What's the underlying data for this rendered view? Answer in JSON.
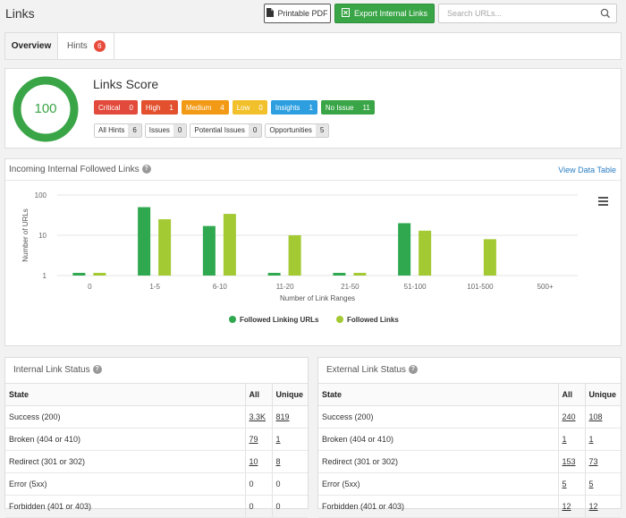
{
  "header": {
    "title": "Links",
    "pdf_label": "Printable PDF",
    "export_label": "Export Internal Links",
    "search_placeholder": "Search URLs..."
  },
  "tabs": [
    {
      "label": "Overview",
      "active": true
    },
    {
      "label": "Hints",
      "badge": "6"
    }
  ],
  "score": {
    "value": "100",
    "title": "Links Score",
    "severity": [
      {
        "label": "Critical",
        "count": "0",
        "color": "#e24a3b"
      },
      {
        "label": "High",
        "count": "1",
        "color": "#e2502e"
      },
      {
        "label": "Medium",
        "count": "4",
        "color": "#f29a16"
      },
      {
        "label": "Low",
        "count": "0",
        "color": "#f2c02b"
      },
      {
        "label": "Insights",
        "count": "1",
        "color": "#2d9fe0"
      },
      {
        "label": "No Issue",
        "count": "11",
        "color": "#3aa547"
      }
    ],
    "hint_types": [
      {
        "label": "All Hints",
        "count": "6"
      },
      {
        "label": "Issues",
        "count": "0"
      },
      {
        "label": "Potential Issues",
        "count": "0"
      },
      {
        "label": "Opportunities",
        "count": "5"
      }
    ]
  },
  "chart_panel": {
    "title": "Incoming Internal Followed Links",
    "link": "View Data Table"
  },
  "chart_data": {
    "type": "bar",
    "categories": [
      "0",
      "1-5",
      "6-10",
      "11-20",
      "21-50",
      "51-100",
      "101-500",
      "500+"
    ],
    "series": [
      {
        "name": "Followed Linking URLs",
        "values": [
          1,
          50,
          17,
          1,
          1,
          20,
          null,
          null
        ],
        "color": "#2fa84f"
      },
      {
        "name": "Followed Links",
        "values": [
          1,
          25,
          34,
          10,
          1,
          13,
          8,
          null
        ],
        "color": "#a3c933"
      }
    ],
    "xlabel": "Number of Link Ranges",
    "ylabel": "Number of URLs",
    "y_scale": "log",
    "ylim": [
      1,
      100
    ],
    "yticks": [
      "1",
      "10",
      "100"
    ],
    "legend": "bottom"
  },
  "internal_table": {
    "title": "Internal Link Status",
    "columns": [
      "State",
      "All",
      "Unique"
    ],
    "rows": [
      {
        "state": "Success (200)",
        "all": "3.3K",
        "unique": "819",
        "link": true
      },
      {
        "state": "Broken (404 or 410)",
        "all": "79",
        "unique": "1",
        "link": true
      },
      {
        "state": "Redirect (301 or 302)",
        "all": "10",
        "unique": "8",
        "link": true
      },
      {
        "state": "Error (5xx)",
        "all": "0",
        "unique": "0",
        "link": false
      },
      {
        "state": "Forbidden (401 or 403)",
        "all": "0",
        "unique": "0",
        "link": false
      }
    ]
  },
  "external_table": {
    "title": "External Link Status",
    "columns": [
      "State",
      "All",
      "Unique"
    ],
    "rows": [
      {
        "state": "Success (200)",
        "all": "240",
        "unique": "108",
        "link": true
      },
      {
        "state": "Broken (404 or 410)",
        "all": "1",
        "unique": "1",
        "link": true
      },
      {
        "state": "Redirect (301 or 302)",
        "all": "153",
        "unique": "73",
        "link": true
      },
      {
        "state": "Error (5xx)",
        "all": "5",
        "unique": "5",
        "link": true
      },
      {
        "state": "Forbidden (401 or 403)",
        "all": "12",
        "unique": "12",
        "link": true
      }
    ]
  }
}
